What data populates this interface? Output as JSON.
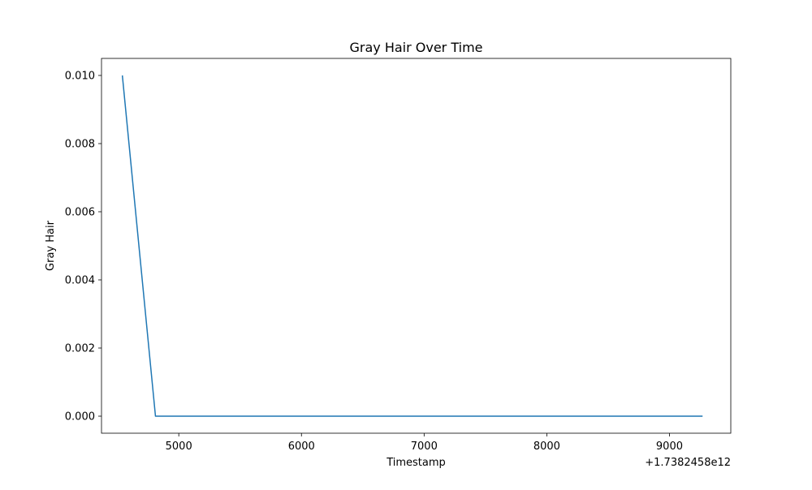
{
  "chart_data": {
    "type": "line",
    "title": "Gray Hair Over Time",
    "xlabel": "Timestamp",
    "ylabel": "Gray Hair",
    "x_offset_label": "+1.7382458e12",
    "xlim": [
      4370,
      9500
    ],
    "ylim": [
      -0.0005,
      0.0105
    ],
    "xticks": [
      5000,
      6000,
      7000,
      8000,
      9000
    ],
    "xtick_labels": [
      "5000",
      "6000",
      "7000",
      "8000",
      "9000"
    ],
    "yticks": [
      0.0,
      0.002,
      0.004,
      0.006,
      0.008,
      0.01
    ],
    "ytick_labels": [
      "0.000",
      "0.002",
      "0.004",
      "0.006",
      "0.008",
      "0.010"
    ],
    "grid": false,
    "series": [
      {
        "color": "#1f77b4",
        "x": [
          4540,
          4810,
          9270
        ],
        "y": [
          0.01,
          0.0,
          0.0
        ]
      }
    ]
  }
}
